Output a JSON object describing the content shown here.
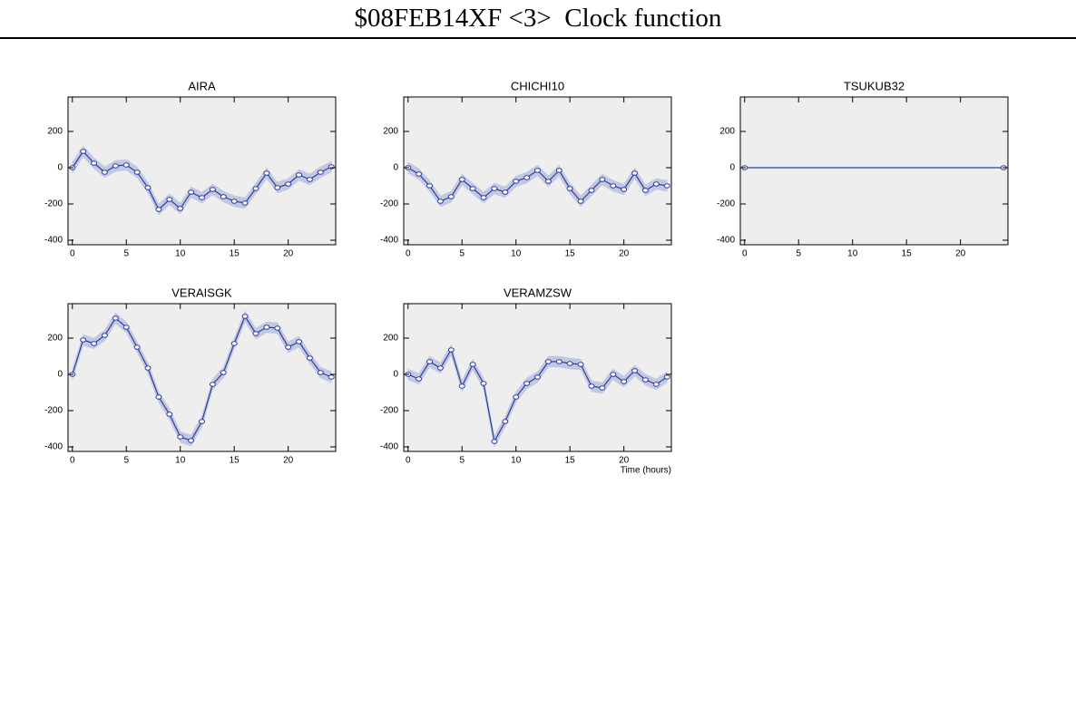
{
  "title": "$08FEB14XF <3>  Clock function",
  "chart_data": [
    {
      "type": "line",
      "title": "AIRA",
      "x": [
        0,
        1,
        2,
        3,
        4,
        5,
        6,
        7,
        8,
        9,
        10,
        11,
        12,
        13,
        14,
        15,
        16,
        17,
        18,
        19,
        20,
        21,
        22,
        23,
        24
      ],
      "values": [
        0,
        90,
        25,
        -25,
        10,
        15,
        -25,
        -110,
        -230,
        -175,
        -225,
        -135,
        -165,
        -120,
        -160,
        -185,
        -195,
        -115,
        -30,
        -110,
        -90,
        -40,
        -65,
        -25,
        5
      ],
      "errors": [
        30,
        30,
        30,
        30,
        30,
        30,
        30,
        30,
        30,
        30,
        30,
        30,
        30,
        30,
        30,
        30,
        30,
        30,
        30,
        30,
        30,
        30,
        30,
        30,
        30
      ],
      "xlim": [
        -0.4,
        24.4
      ],
      "ylim": [
        -425,
        390
      ],
      "xticks": [
        0,
        5,
        10,
        15,
        20
      ],
      "yticks": [
        -400,
        -200,
        0,
        200
      ],
      "color": "#2b3fa0",
      "band_color": "#c3c7df",
      "background": "#eeeeee"
    },
    {
      "type": "line",
      "title": "CHICHI10",
      "x": [
        0,
        1,
        2,
        3,
        4,
        5,
        6,
        7,
        8,
        9,
        10,
        11,
        12,
        13,
        14,
        15,
        16,
        17,
        18,
        19,
        20,
        21,
        22,
        23,
        24
      ],
      "values": [
        0,
        -35,
        -100,
        -185,
        -160,
        -65,
        -115,
        -165,
        -115,
        -135,
        -75,
        -55,
        -15,
        -75,
        -15,
        -115,
        -185,
        -125,
        -65,
        -100,
        -120,
        -30,
        -125,
        -90,
        -100
      ],
      "errors": [
        30,
        30,
        30,
        30,
        30,
        30,
        30,
        30,
        30,
        30,
        30,
        30,
        30,
        30,
        30,
        30,
        30,
        30,
        30,
        30,
        30,
        30,
        30,
        30,
        30
      ],
      "xlim": [
        -0.4,
        24.4
      ],
      "ylim": [
        -425,
        390
      ],
      "xticks": [
        0,
        5,
        10,
        15,
        20
      ],
      "yticks": [
        -400,
        -200,
        0,
        200
      ],
      "color": "#2b3fa0",
      "band_color": "#c3c7df",
      "background": "#eeeeee"
    },
    {
      "type": "line",
      "title": "TSUKUB32",
      "x": [
        0,
        24
      ],
      "values": [
        0,
        0
      ],
      "errors": [
        0,
        0
      ],
      "xlim": [
        -0.4,
        24.4
      ],
      "ylim": [
        -425,
        390
      ],
      "xticks": [
        0,
        5,
        10,
        15,
        20
      ],
      "yticks": [
        -400,
        -200,
        0,
        200
      ],
      "color": "#2b3fa0",
      "band_color": "#c3c7df",
      "background": "#eeeeee"
    },
    {
      "type": "line",
      "title": "VERAISGK",
      "x": [
        0,
        1,
        2,
        3,
        4,
        5,
        6,
        7,
        8,
        9,
        10,
        11,
        12,
        13,
        14,
        15,
        16,
        17,
        18,
        19,
        20,
        21,
        22,
        23,
        24
      ],
      "values": [
        0,
        190,
        170,
        215,
        310,
        260,
        150,
        35,
        -125,
        -220,
        -345,
        -365,
        -260,
        -55,
        10,
        170,
        320,
        225,
        260,
        255,
        150,
        180,
        90,
        10,
        -15
      ],
      "errors": [
        30,
        30,
        30,
        30,
        30,
        30,
        30,
        30,
        30,
        30,
        30,
        30,
        30,
        30,
        30,
        30,
        30,
        30,
        30,
        30,
        30,
        30,
        30,
        30,
        30
      ],
      "xlim": [
        -0.4,
        24.4
      ],
      "ylim": [
        -425,
        390
      ],
      "xticks": [
        0,
        5,
        10,
        15,
        20
      ],
      "yticks": [
        -400,
        -200,
        0,
        200
      ],
      "color": "#2b3fa0",
      "band_color": "#c3c7df",
      "background": "#eeeeee"
    },
    {
      "type": "line",
      "title": "VERAMZSW",
      "xlabel": "Time (hours)",
      "x": [
        0,
        1,
        2,
        3,
        4,
        5,
        6,
        7,
        8,
        9,
        10,
        11,
        12,
        13,
        14,
        15,
        16,
        17,
        18,
        19,
        20,
        21,
        22,
        23,
        24
      ],
      "values": [
        0,
        -25,
        70,
        35,
        135,
        -65,
        55,
        -50,
        -370,
        -260,
        -125,
        -50,
        -15,
        70,
        70,
        60,
        55,
        -65,
        -75,
        0,
        -40,
        20,
        -30,
        -55,
        -15
      ],
      "errors": [
        30,
        30,
        30,
        30,
        30,
        30,
        30,
        30,
        30,
        30,
        30,
        30,
        30,
        30,
        30,
        30,
        30,
        30,
        30,
        30,
        30,
        30,
        30,
        30,
        30
      ],
      "xlim": [
        -0.4,
        24.4
      ],
      "ylim": [
        -425,
        390
      ],
      "xticks": [
        0,
        5,
        10,
        15,
        20
      ],
      "yticks": [
        -400,
        -200,
        0,
        200
      ],
      "color": "#2b3fa0",
      "band_color": "#c3c7df",
      "background": "#eeeeee"
    }
  ]
}
